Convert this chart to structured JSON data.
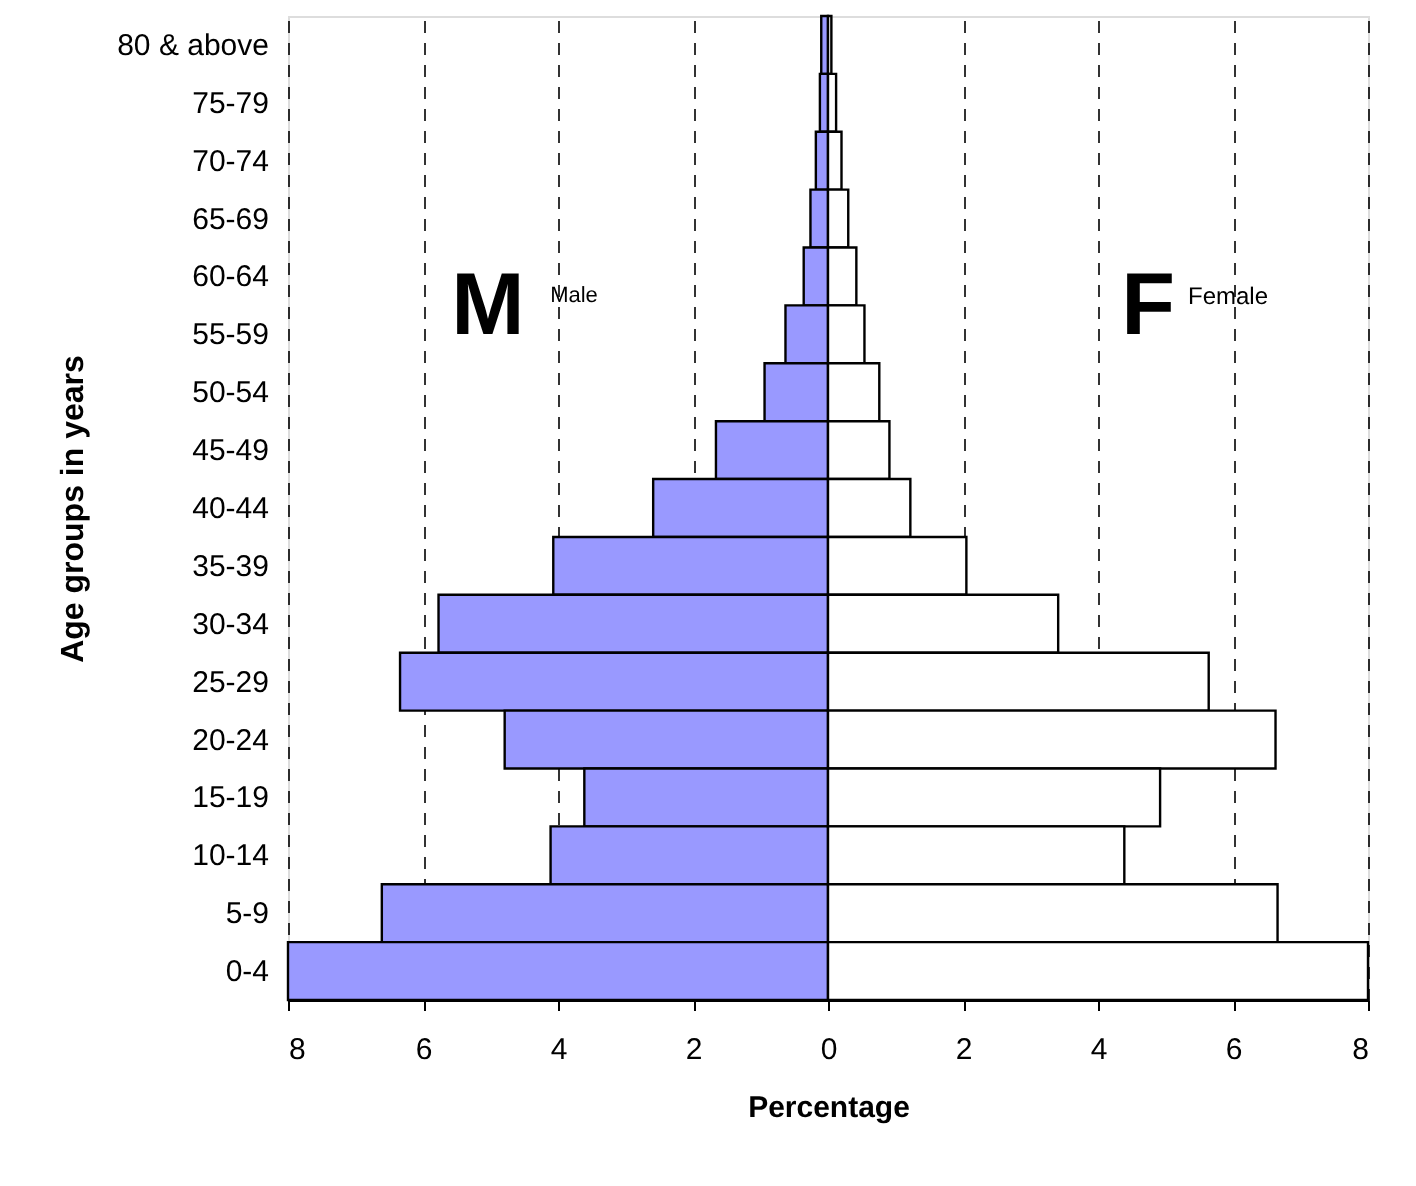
{
  "chart_data": {
    "type": "bar",
    "orientation": "horizontal",
    "xlabel": "Percentage",
    "ylabel": "Age groups in years",
    "categories": [
      "80 & above",
      "75-79",
      "70-74",
      "65-69",
      "60-64",
      "55-59",
      "50-54",
      "45-49",
      "40-44",
      "35-39",
      "30-34",
      "25-29",
      "20-24",
      "15-19",
      "10-14",
      "5-9",
      "0-4"
    ],
    "series": [
      {
        "color": "#9999ff",
        "values": [
          -0.1,
          -0.12,
          -0.18,
          -0.26,
          -0.36,
          -0.63,
          -0.94,
          -1.66,
          -2.59,
          -4.07,
          -5.77,
          -6.34,
          -4.79,
          -3.61,
          -4.11,
          -6.61,
          -8
        ]
      },
      {
        "color": "#ffffff",
        "values": [
          0.05,
          0.12,
          0.2,
          0.3,
          0.42,
          0.54,
          0.76,
          0.91,
          1.22,
          2.05,
          3.41,
          5.64,
          6.63,
          4.92,
          4.39,
          6.66,
          8
        ]
      }
    ],
    "xlim": [
      -8,
      8
    ],
    "xticks": [
      {
        "value": -8,
        "label": "8"
      },
      {
        "value": -6,
        "label": "6"
      },
      {
        "value": -4,
        "label": "4"
      },
      {
        "value": -2,
        "label": "2"
      },
      0,
      2,
      4,
      6,
      8
    ],
    "grid": "x",
    "stacked": true,
    "annotations": [
      "M",
      "Male",
      "F",
      "Female"
    ]
  }
}
